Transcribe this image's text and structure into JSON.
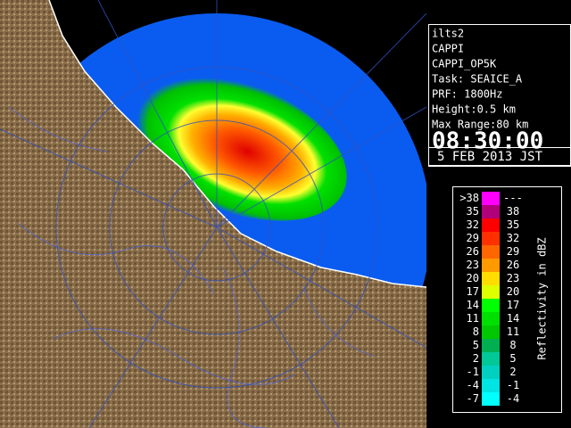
{
  "station": "ilts2",
  "info": [
    "CAPPI",
    "CAPPI_OP5K",
    "Task: SEAICE_A",
    "PRF: 1800Hz",
    "Height:0.5 km",
    "Max Range:80 km"
  ],
  "time": "08:30:00",
  "date": "5 FEB 2013 JST",
  "legend": {
    "title": "Reflectivity in dBZ",
    "rows": [
      {
        "low": ">38",
        "high": "---",
        "color": "#ff00ff"
      },
      {
        "low": "35",
        "high": "38",
        "color": "#b0007a"
      },
      {
        "low": "32",
        "high": "35",
        "color": "#ff0000"
      },
      {
        "low": "29",
        "high": "32",
        "color": "#ff3000"
      },
      {
        "low": "26",
        "high": "29",
        "color": "#ff6600"
      },
      {
        "low": "23",
        "high": "26",
        "color": "#ff9900"
      },
      {
        "low": "20",
        "high": "23",
        "color": "#ffdd00"
      },
      {
        "low": "17",
        "high": "20",
        "color": "#ddff00"
      },
      {
        "low": "14",
        "high": "17",
        "color": "#00ff00"
      },
      {
        "low": "11",
        "high": "14",
        "color": "#00e000"
      },
      {
        "low": "8",
        "high": "11",
        "color": "#00c800"
      },
      {
        "low": "5",
        "high": "8",
        "color": "#00b050"
      },
      {
        "low": "2",
        "high": "5",
        "color": "#00c896"
      },
      {
        "low": "-1",
        "high": "2",
        "color": "#00d0c0"
      },
      {
        "low": "-4",
        "high": "-1",
        "color": "#00e4e4"
      },
      {
        "low": "-7",
        "high": "-4",
        "color": "#00ffff"
      }
    ]
  }
}
